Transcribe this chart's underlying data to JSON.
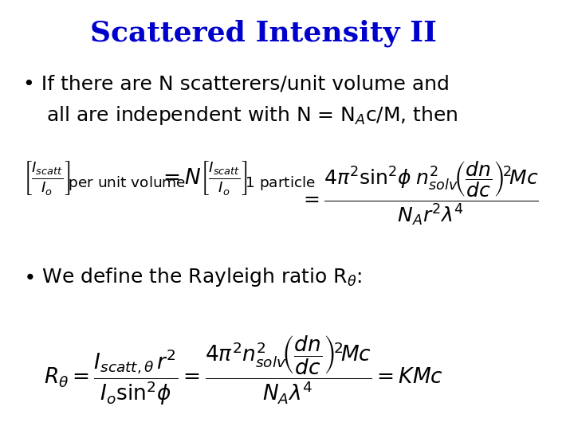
{
  "title": "Scattered Intensity II",
  "title_color": "#0000CC",
  "title_fontsize": 26,
  "bg_color": "#FFFFFF",
  "bullet1": "If there are N scatterers/unit volume and\nall are independent with N = N$_A$c/M, then",
  "bullet2": "We define the Rayleigh ratio R$_{\\theta}$:",
  "eq1_left": "$\\left[\\frac{I_{scatt}}{I_o}\\right]_{per\\ unit\\ volume}$",
  "eq1_mid": "$= N\\left[\\frac{I_{scatt}}{I_o}\\right]_{1\\ particle}$",
  "eq1_right": "$= \\frac{4\\pi^2 \\sin^2\\!\\phi\\, n_{solv}^2 \\left(\\frac{dn}{dc}\\right)^{\\!2} Mc}{N_A r^2 \\lambda^4}$",
  "eq2": "$R_\\theta = \\frac{I_{scatt,\\theta}\\, r^2}{I_o \\sin^2\\!\\phi} = \\frac{4\\pi^2 n_{solv}^2 \\left(\\frac{dn}{dc}\\right)^{\\!2} Mc}{N_A \\lambda^4} = KMc$",
  "bullet_fontsize": 18,
  "eq_fontsize": 16,
  "text_color": "#000000"
}
